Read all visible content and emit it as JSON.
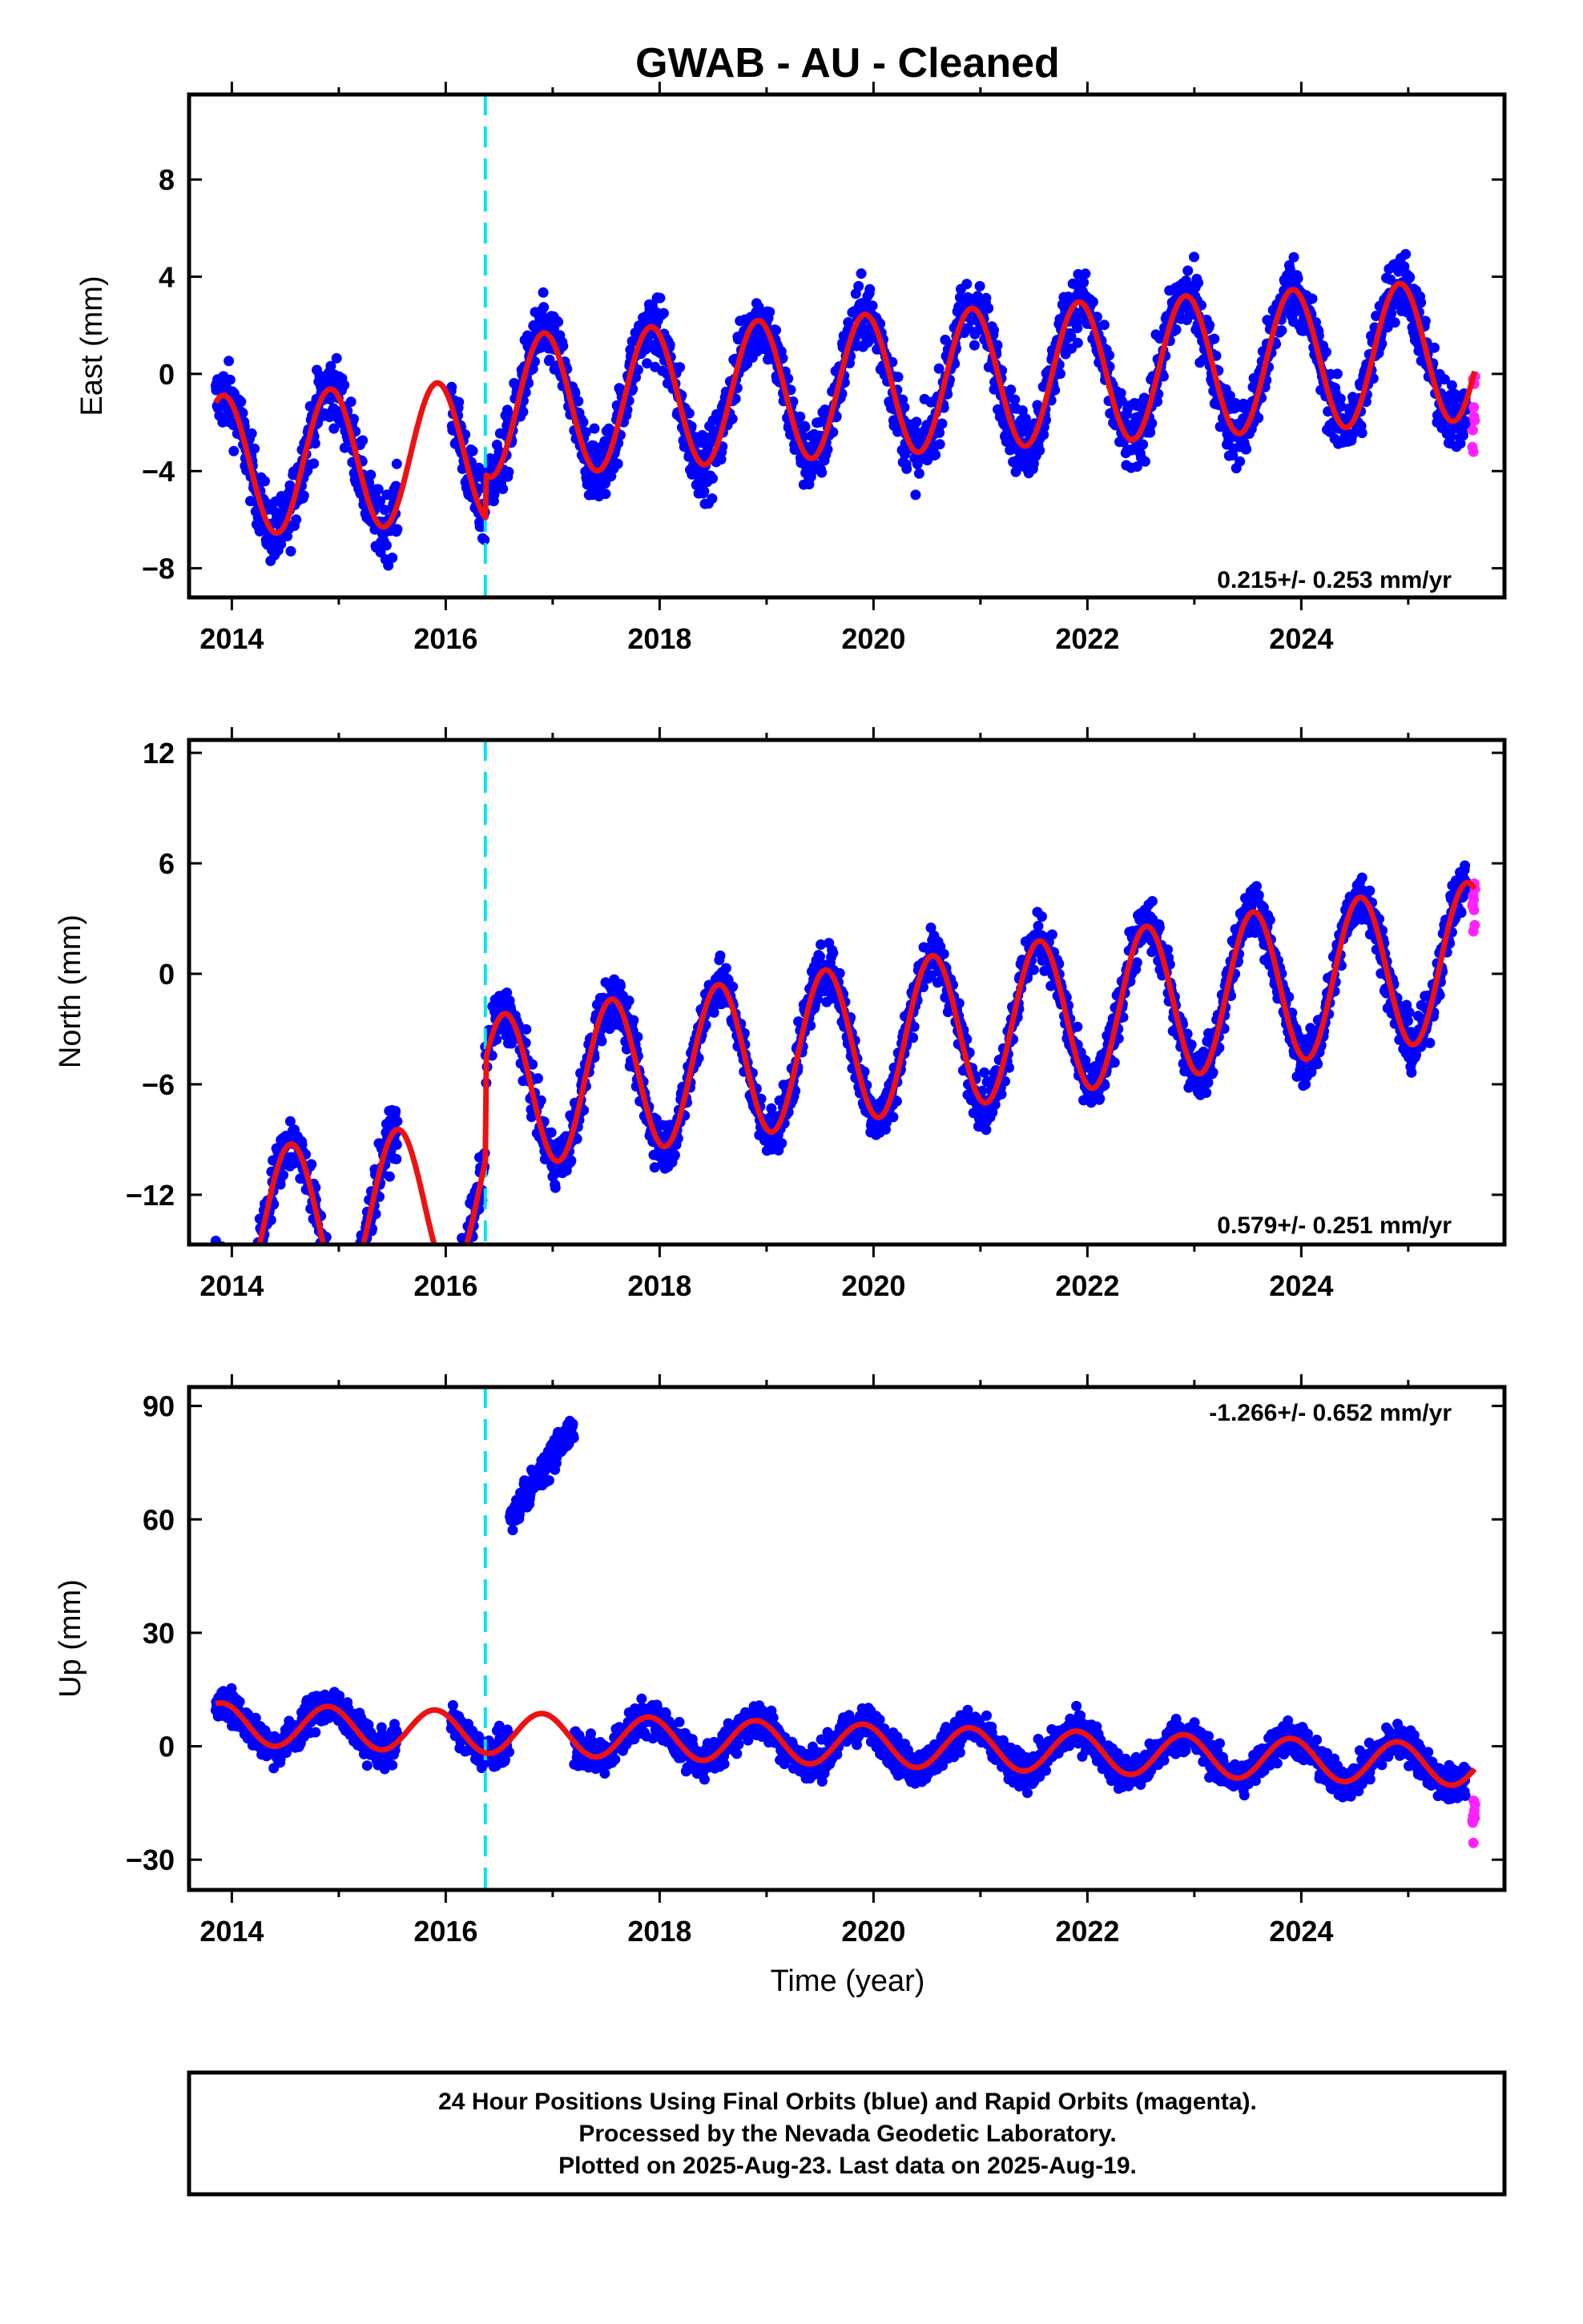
{
  "title": "GWAB  - AU - Cleaned",
  "colors": {
    "final_orbits": "#0000ff",
    "rapid_orbits": "#ff22ff",
    "model": "#ee1111",
    "offset_line": "#00e5ee",
    "frame": "#000000"
  },
  "chart_data": [
    {
      "type": "scatter",
      "ylabel": "East (mm)",
      "xlabel": "",
      "xlim": [
        2013.6,
        2025.9
      ],
      "ylim": [
        -9.2,
        11.5
      ],
      "yticks": [
        -8,
        -4,
        0,
        4,
        8
      ],
      "xticks": [
        2014,
        2016,
        2018,
        2020,
        2022,
        2024
      ],
      "rate": "0.215+/- 0.253 mm/yr",
      "rate_position": "bottom-right",
      "offset_epoch": 2016.37,
      "model": {
        "amplitude": 2.9,
        "trend_start": -2.0,
        "trend_end": 1.0,
        "phase_year": 2013.92,
        "pre_offset_shift": -1.8
      },
      "notes": "blue = final orbits daily positions, magenta = rapid orbits, red = fitted trend + seasonal model"
    },
    {
      "type": "scatter",
      "ylabel": "North (mm)",
      "xlabel": "",
      "xlim": [
        2013.6,
        2025.9
      ],
      "ylim": [
        -14.7,
        12.7
      ],
      "yticks": [
        -12,
        -6,
        0,
        6,
        12
      ],
      "xticks": [
        2014,
        2016,
        2018,
        2020,
        2022,
        2024
      ],
      "rate": "0.579+/- 0.251 mm/yr",
      "rate_position": "bottom-right",
      "offset_epoch": 2016.37,
      "model": {
        "amplitude": 4.2,
        "trend_start": -8.5,
        "trend_end": 0.8,
        "phase_year": 2013.55,
        "pre_offset_shift": -5.5
      }
    },
    {
      "type": "scatter",
      "ylabel": "Up (mm)",
      "xlabel": "Time (year)",
      "xlim": [
        2013.6,
        2025.9
      ],
      "ylim": [
        -38,
        95
      ],
      "yticks": [
        -30,
        0,
        30,
        60,
        90
      ],
      "xticks": [
        2014,
        2016,
        2018,
        2020,
        2022,
        2024
      ],
      "rate": "-1.266+/- 0.652 mm/yr",
      "rate_position": "top-right",
      "offset_epoch": 2016.37,
      "model": {
        "amplitude": 5.5,
        "trend_start": 6,
        "trend_end": -5,
        "phase_year": 2013.9,
        "pre_offset_shift": 0
      },
      "outlier_cluster": {
        "x_start": 2016.6,
        "x_end": 2017.2,
        "y_start": 60,
        "y_end": 85
      }
    }
  ],
  "footer": {
    "line1": "24 Hour Positions Using Final Orbits (blue) and Rapid Orbits (magenta).",
    "line2": "Processed by the Nevada Geodetic Laboratory.",
    "line3": "Plotted on 2025-Aug-23. Last data on 2025-Aug-19."
  }
}
